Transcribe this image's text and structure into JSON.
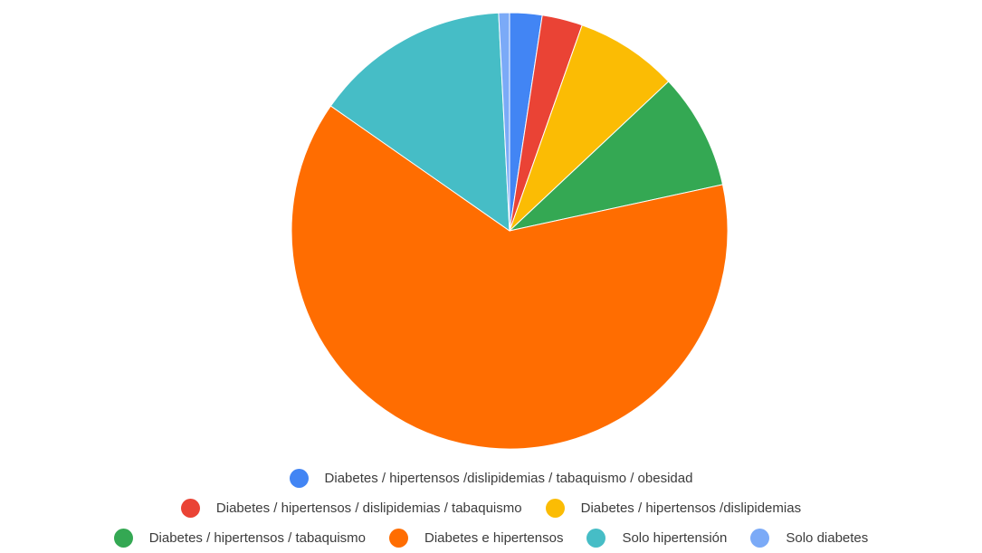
{
  "chart_data": {
    "type": "pie",
    "title": "",
    "series": [
      {
        "name": "Diabetes / hipertensos /dislipidemias / tabaquismo / obesidad",
        "value": 2.4,
        "color": "#4285f4"
      },
      {
        "name": "Diabetes / hipertensos / dislipidemias / tabaquismo",
        "value": 3.0,
        "color": "#ea4335"
      },
      {
        "name": "Diabetes / hipertensos /dislipidemias",
        "value": 7.6,
        "color": "#fbbc04"
      },
      {
        "name": "Diabetes / hipertensos / tabaquismo",
        "value": 8.6,
        "color": "#34a853"
      },
      {
        "name": "Diabetes e hipertensos",
        "value": 63.1,
        "color": "#ff6d01"
      },
      {
        "name": "Solo hipertensión",
        "value": 14.5,
        "color": "#46bdc6"
      },
      {
        "name": "Solo diabetes",
        "value": 0.8,
        "color": "#7baaf7"
      }
    ],
    "legend_position": "bottom",
    "legend_rows": [
      [
        0
      ],
      [
        1,
        2
      ],
      [
        3,
        4,
        5,
        6
      ]
    ]
  }
}
